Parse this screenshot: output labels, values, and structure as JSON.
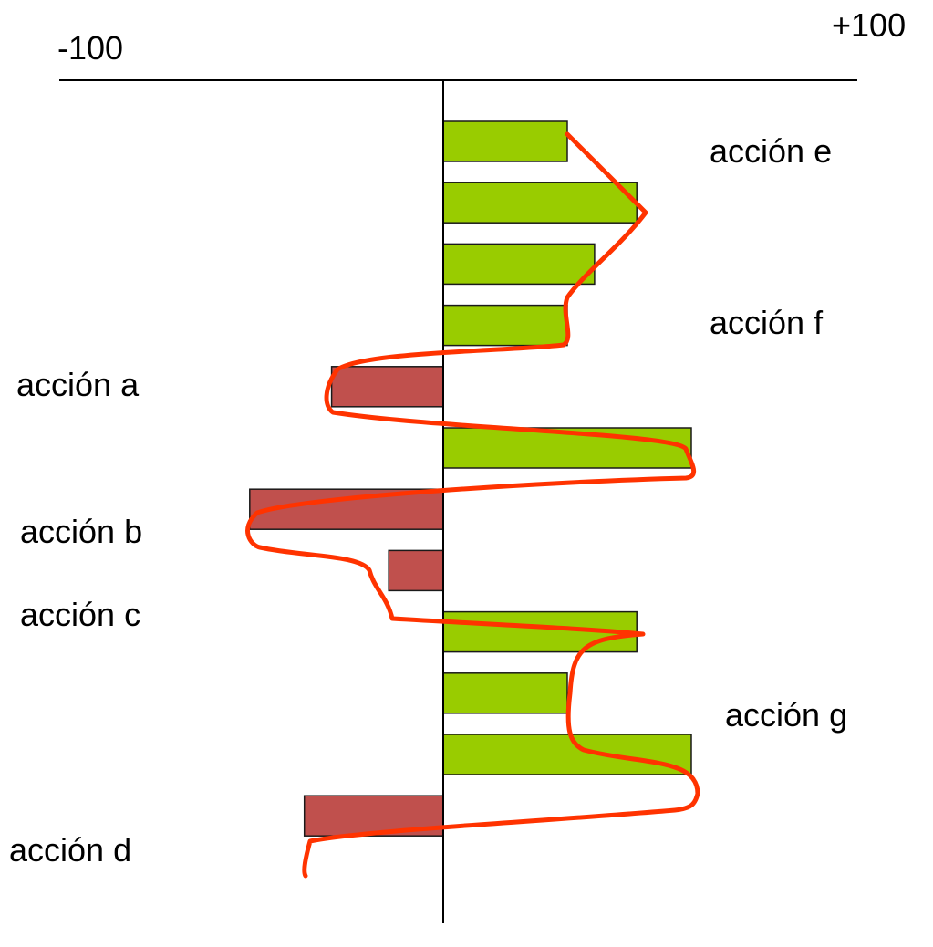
{
  "chart_data": {
    "type": "bar",
    "orientation": "horizontal",
    "title": "",
    "xlabel": "",
    "ylabel": "",
    "xlim": [
      -100,
      100
    ],
    "tick_labels": {
      "min": "-100",
      "max": "+100"
    },
    "values": [
      50,
      78,
      61,
      50,
      -45,
      100,
      -78,
      -22,
      78,
      50,
      100,
      -56
    ],
    "annotations": [
      "acción e",
      "acción f",
      "acción a",
      "acción b",
      "acción c",
      "acción g",
      "acción d"
    ],
    "colors": {
      "positive": "#99cc00",
      "negative": "#c0504d",
      "bar_stroke": "#1a1a1a",
      "axis": "#000000",
      "freehand_line": "#ff3300"
    },
    "grid": false,
    "legend": "none"
  }
}
